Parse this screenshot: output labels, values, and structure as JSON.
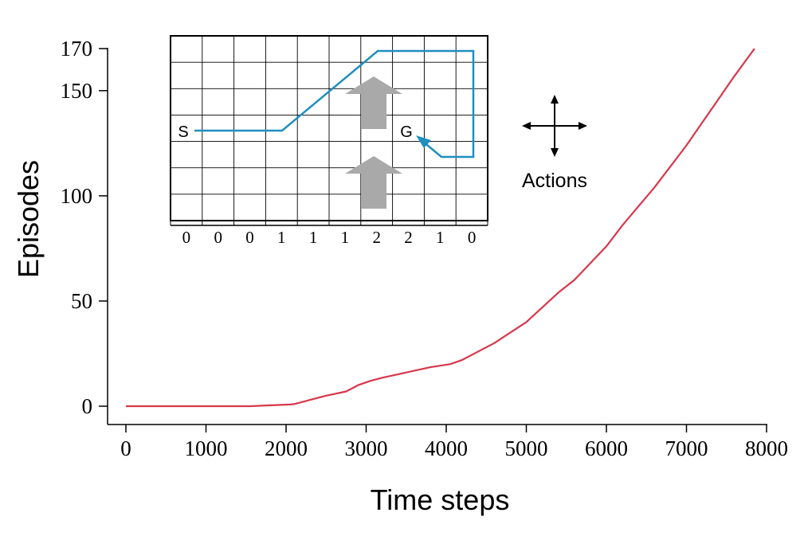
{
  "chart_data": {
    "type": "line",
    "title": "",
    "xlabel": "Time steps",
    "ylabel": "Episodes",
    "xlim": [
      0,
      8000
    ],
    "ylim": [
      0,
      170
    ],
    "x_ticks": [
      0,
      1000,
      2000,
      3000,
      4000,
      5000,
      6000,
      7000,
      8000
    ],
    "y_ticks": [
      0,
      50,
      100,
      150,
      170
    ],
    "grid": false,
    "series": [
      {
        "color": "#d8374a",
        "points": [
          [
            0,
            0
          ],
          [
            500,
            0
          ],
          [
            1000,
            0
          ],
          [
            1550,
            0
          ],
          [
            1800,
            0.4
          ],
          [
            2050,
            0.8
          ],
          [
            2100,
            1
          ],
          [
            2300,
            3
          ],
          [
            2500,
            5
          ],
          [
            2750,
            7
          ],
          [
            2900,
            10
          ],
          [
            3050,
            12
          ],
          [
            3200,
            13.5
          ],
          [
            3500,
            16
          ],
          [
            3800,
            18.5
          ],
          [
            4050,
            20
          ],
          [
            4200,
            22
          ],
          [
            4400,
            26
          ],
          [
            4600,
            30
          ],
          [
            4800,
            35
          ],
          [
            5000,
            40
          ],
          [
            5200,
            47
          ],
          [
            5400,
            54
          ],
          [
            5600,
            60
          ],
          [
            5800,
            68
          ],
          [
            6000,
            76
          ],
          [
            6200,
            86
          ],
          [
            6400,
            95
          ],
          [
            6600,
            104
          ],
          [
            6800,
            114
          ],
          [
            7000,
            124
          ],
          [
            7200,
            135
          ],
          [
            7400,
            146
          ],
          [
            7600,
            157
          ],
          [
            7850,
            170
          ]
        ]
      }
    ]
  },
  "inset": {
    "start_label": "S",
    "goal_label": "G",
    "wind_strengths": [
      "0",
      "0",
      "0",
      "1",
      "1",
      "1",
      "2",
      "2",
      "1",
      "0"
    ],
    "actions_label": "Actions",
    "path_color": "#1f8fc0",
    "arrow_color": "#a9a9a9"
  }
}
